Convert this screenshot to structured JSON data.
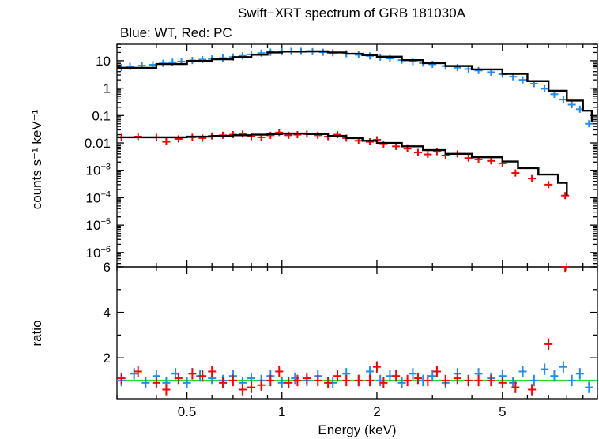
{
  "chart_data": {
    "type": "scatter",
    "title": "Swift−XRT spectrum of GRB 181030A",
    "subtitle": "Blue: WT, Red: PC",
    "xlabel": "Energy (keV)",
    "x_scale": "log",
    "xlim": [
      0.3,
      10
    ],
    "x_ticks": [
      {
        "value": 0.5,
        "label": "0.5"
      },
      {
        "value": 1,
        "label": "1"
      },
      {
        "value": 2,
        "label": "2"
      },
      {
        "value": 5,
        "label": "5"
      }
    ],
    "panels": [
      {
        "id": "spectrum",
        "ylabel": "counts s⁻¹ keV⁻¹",
        "y_scale": "log",
        "ylim": [
          3e-07,
          40
        ],
        "y_ticks": [
          {
            "value": 10,
            "label": "10"
          },
          {
            "value": 1,
            "label": "1"
          },
          {
            "value": 0.1,
            "label": "0.1"
          },
          {
            "value": 0.01,
            "label": "0.01"
          },
          {
            "value": 0.001,
            "base": "10",
            "exp": "−3"
          },
          {
            "value": 0.0001,
            "base": "10",
            "exp": "−4"
          },
          {
            "value": 1e-05,
            "base": "10",
            "exp": "−5"
          },
          {
            "value": 1e-06,
            "base": "10",
            "exp": "−6"
          }
        ],
        "series": [
          {
            "color": "#1f8cf0",
            "points": [
              [
                0.31,
                5.6
              ],
              [
                0.33,
                6.2
              ],
              [
                0.36,
                6.6
              ],
              [
                0.39,
                7.1
              ],
              [
                0.42,
                8.0
              ],
              [
                0.45,
                8.8
              ],
              [
                0.48,
                9.4
              ],
              [
                0.52,
                10.2
              ],
              [
                0.56,
                11.0
              ],
              [
                0.6,
                11.6
              ],
              [
                0.65,
                12.5
              ],
              [
                0.7,
                13.6
              ],
              [
                0.75,
                15.0
              ],
              [
                0.8,
                17.0
              ],
              [
                0.86,
                19.0
              ],
              [
                0.92,
                20.5
              ],
              [
                1.0,
                21.5
              ],
              [
                1.07,
                22.0
              ],
              [
                1.15,
                22.0
              ],
              [
                1.25,
                21.5
              ],
              [
                1.35,
                20.5
              ],
              [
                1.45,
                19.5
              ],
              [
                1.6,
                18.0
              ],
              [
                1.75,
                16.5
              ],
              [
                1.9,
                15.0
              ],
              [
                2.05,
                13.5
              ],
              [
                2.2,
                12.0
              ],
              [
                2.4,
                10.5
              ],
              [
                2.6,
                9.3
              ],
              [
                2.8,
                8.2
              ],
              [
                3.0,
                7.4
              ],
              [
                3.3,
                6.4
              ],
              [
                3.6,
                5.6
              ],
              [
                3.9,
                5.0
              ],
              [
                4.2,
                4.4
              ],
              [
                4.6,
                3.8
              ],
              [
                5.0,
                3.2
              ],
              [
                5.4,
                2.6
              ],
              [
                5.8,
                2.0
              ],
              [
                6.3,
                1.45
              ],
              [
                6.8,
                0.95
              ],
              [
                7.3,
                0.6
              ],
              [
                7.8,
                0.38
              ],
              [
                8.3,
                0.25
              ],
              [
                8.8,
                0.17
              ],
              [
                9.4,
                0.05
              ]
            ]
          },
          {
            "color": "#ff0000",
            "points": [
              [
                0.31,
                0.016
              ],
              [
                0.35,
                0.017
              ],
              [
                0.4,
                0.016
              ],
              [
                0.43,
                0.011
              ],
              [
                0.47,
                0.014
              ],
              [
                0.52,
                0.016
              ],
              [
                0.56,
                0.015
              ],
              [
                0.6,
                0.018
              ],
              [
                0.65,
                0.019
              ],
              [
                0.7,
                0.02
              ],
              [
                0.75,
                0.021
              ],
              [
                0.8,
                0.017
              ],
              [
                0.86,
                0.016
              ],
              [
                0.92,
                0.019
              ],
              [
                0.98,
                0.024
              ],
              [
                1.05,
                0.019
              ],
              [
                1.12,
                0.02
              ],
              [
                1.2,
                0.021
              ],
              [
                1.3,
                0.019
              ],
              [
                1.4,
                0.017
              ],
              [
                1.5,
                0.02
              ],
              [
                1.6,
                0.015
              ],
              [
                1.75,
                0.012
              ],
              [
                1.9,
                0.011
              ],
              [
                2.0,
                0.013
              ],
              [
                2.1,
                0.009
              ],
              [
                2.3,
                0.0075
              ],
              [
                2.5,
                0.0062
              ],
              [
                2.7,
                0.0045
              ],
              [
                2.9,
                0.0038
              ],
              [
                3.1,
                0.0048
              ],
              [
                3.3,
                0.0035
              ],
              [
                3.6,
                0.004
              ],
              [
                3.9,
                0.0028
              ],
              [
                4.2,
                0.0025
              ],
              [
                4.6,
                0.0022
              ],
              [
                5.0,
                0.0018
              ],
              [
                5.5,
                0.0008
              ],
              [
                6.2,
                0.0005
              ],
              [
                7.0,
                0.0003
              ],
              [
                7.9,
                0.00012
              ]
            ]
          }
        ],
        "model_lines": [
          {
            "color": "#000000",
            "points": [
              [
                0.3,
                5.5
              ],
              [
                0.4,
                7.6
              ],
              [
                0.5,
                9.8
              ],
              [
                0.6,
                11.3
              ],
              [
                0.7,
                13.5
              ],
              [
                0.8,
                16.5
              ],
              [
                0.9,
                20.0
              ],
              [
                1.0,
                21.5
              ],
              [
                1.2,
                22.0
              ],
              [
                1.4,
                20.0
              ],
              [
                1.6,
                18.0
              ],
              [
                1.8,
                16.0
              ],
              [
                2.0,
                14.0
              ],
              [
                2.4,
                10.5
              ],
              [
                2.8,
                8.2
              ],
              [
                3.3,
                6.4
              ],
              [
                4.0,
                4.8
              ],
              [
                5.0,
                3.3
              ],
              [
                6.0,
                1.8
              ],
              [
                7.0,
                0.8
              ],
              [
                8.0,
                0.35
              ],
              [
                9.0,
                0.15
              ],
              [
                9.6,
                0.06
              ]
            ]
          },
          {
            "color": "#000000",
            "points": [
              [
                0.3,
                0.016
              ],
              [
                0.38,
                0.016
              ],
              [
                0.5,
                0.017
              ],
              [
                0.6,
                0.018
              ],
              [
                0.7,
                0.019
              ],
              [
                0.8,
                0.02
              ],
              [
                0.9,
                0.021
              ],
              [
                1.0,
                0.022
              ],
              [
                1.2,
                0.021
              ],
              [
                1.4,
                0.018
              ],
              [
                1.6,
                0.015
              ],
              [
                1.8,
                0.012
              ],
              [
                2.0,
                0.01
              ],
              [
                2.4,
                0.0075
              ],
              [
                2.8,
                0.0055
              ],
              [
                3.3,
                0.004
              ],
              [
                4.0,
                0.003
              ],
              [
                5.0,
                0.0021
              ],
              [
                5.6,
                0.0012
              ],
              [
                6.5,
                0.0007
              ],
              [
                7.5,
                0.00035
              ],
              [
                8.0,
                0.00012
              ]
            ]
          }
        ]
      },
      {
        "id": "ratio",
        "ylabel": "ratio",
        "y_scale": "linear",
        "ylim": [
          0.2,
          6
        ],
        "y_ticks": [
          {
            "value": 2,
            "label": "2"
          },
          {
            "value": 4,
            "label": "4"
          },
          {
            "value": 6,
            "label": "6"
          }
        ],
        "reference_line": {
          "value": 1,
          "color": "#22dd22"
        },
        "series": [
          {
            "color": "#1f8cf0",
            "points": [
              [
                0.31,
                1.0
              ],
              [
                0.34,
                1.3
              ],
              [
                0.37,
                0.9
              ],
              [
                0.4,
                1.2
              ],
              [
                0.43,
                0.9
              ],
              [
                0.46,
                1.3
              ],
              [
                0.5,
                0.9
              ],
              [
                0.55,
                1.2
              ],
              [
                0.6,
                1.1
              ],
              [
                0.65,
                1.0
              ],
              [
                0.7,
                1.2
              ],
              [
                0.75,
                0.9
              ],
              [
                0.8,
                1.1
              ],
              [
                0.86,
                1.0
              ],
              [
                0.92,
                1.2
              ],
              [
                1.0,
                0.9
              ],
              [
                1.1,
                1.1
              ],
              [
                1.2,
                1.0
              ],
              [
                1.3,
                1.2
              ],
              [
                1.45,
                0.9
              ],
              [
                1.6,
                1.3
              ],
              [
                1.75,
                1.0
              ],
              [
                1.9,
                1.4
              ],
              [
                2.05,
                1.0
              ],
              [
                2.2,
                1.2
              ],
              [
                2.4,
                0.9
              ],
              [
                2.6,
                1.3
              ],
              [
                2.8,
                1.0
              ],
              [
                3.0,
                1.2
              ],
              [
                3.3,
                0.9
              ],
              [
                3.6,
                1.3
              ],
              [
                3.9,
                1.0
              ],
              [
                4.2,
                1.3
              ],
              [
                4.6,
                1.1
              ],
              [
                5.0,
                1.2
              ],
              [
                5.4,
                0.9
              ],
              [
                5.8,
                1.4
              ],
              [
                6.3,
                1.0
              ],
              [
                6.8,
                1.5
              ],
              [
                7.3,
                1.2
              ],
              [
                7.8,
                1.6
              ],
              [
                8.3,
                1.0
              ],
              [
                8.8,
                1.3
              ],
              [
                9.4,
                0.7
              ]
            ]
          },
          {
            "color": "#ff0000",
            "points": [
              [
                0.31,
                1.1
              ],
              [
                0.35,
                1.4
              ],
              [
                0.4,
                0.9
              ],
              [
                0.43,
                0.6
              ],
              [
                0.47,
                1.1
              ],
              [
                0.52,
                1.3
              ],
              [
                0.56,
                1.2
              ],
              [
                0.6,
                1.4
              ],
              [
                0.65,
                0.9
              ],
              [
                0.7,
                1.0
              ],
              [
                0.75,
                0.6
              ],
              [
                0.8,
                0.7
              ],
              [
                0.86,
                0.8
              ],
              [
                0.92,
                1.0
              ],
              [
                0.98,
                1.4
              ],
              [
                1.05,
                0.9
              ],
              [
                1.12,
                1.0
              ],
              [
                1.2,
                1.1
              ],
              [
                1.3,
                1.0
              ],
              [
                1.4,
                0.9
              ],
              [
                1.5,
                1.2
              ],
              [
                1.6,
                1.0
              ],
              [
                1.75,
                1.0
              ],
              [
                1.9,
                1.0
              ],
              [
                2.0,
                1.6
              ],
              [
                2.1,
                0.9
              ],
              [
                2.3,
                1.2
              ],
              [
                2.5,
                1.0
              ],
              [
                2.7,
                1.1
              ],
              [
                2.9,
                1.0
              ],
              [
                3.1,
                1.4
              ],
              [
                3.3,
                1.0
              ],
              [
                3.6,
                1.1
              ],
              [
                3.9,
                1.0
              ],
              [
                4.2,
                1.0
              ],
              [
                4.6,
                1.0
              ],
              [
                5.0,
                0.9
              ],
              [
                5.5,
                0.7
              ],
              [
                6.2,
                0.6
              ],
              [
                7.0,
                2.6
              ],
              [
                7.9,
                6.0
              ]
            ]
          }
        ]
      }
    ]
  }
}
